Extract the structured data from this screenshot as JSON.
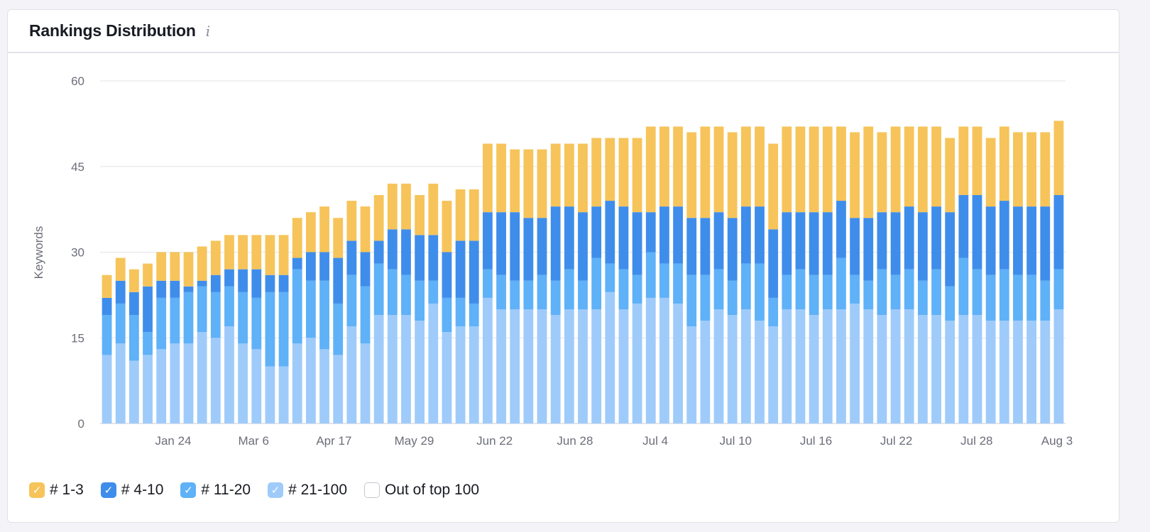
{
  "card": {
    "title": "Rankings Distribution",
    "info_icon": "info-icon"
  },
  "chart_data": {
    "type": "bar",
    "stacked": true,
    "ylabel": "Keywords",
    "xlabel": "",
    "ylim": [
      0,
      60
    ],
    "y_ticks": [
      0,
      15,
      30,
      45,
      60
    ],
    "x_tick_labels": [
      "Jan 24",
      "Mar 6",
      "Apr 17",
      "May 29",
      "Jun 22",
      "Jun 28",
      "Jul 4",
      "Jul 10",
      "Jul 16",
      "Jul 22",
      "Jul 28",
      "Aug 3"
    ],
    "grid": true,
    "legend_position": "bottom-left",
    "series": [
      {
        "name": "# 21-100",
        "color": "#9fcbfa",
        "values": [
          12,
          14,
          11,
          12,
          13,
          14,
          14,
          16,
          15,
          17,
          14,
          13,
          10,
          10,
          14,
          15,
          13,
          12,
          17,
          14,
          19,
          19,
          19,
          18,
          21,
          16,
          17,
          17,
          22,
          20,
          20,
          20,
          20,
          19,
          20,
          20,
          20,
          23,
          20,
          21,
          22,
          22,
          21,
          17,
          18,
          20,
          19,
          20,
          18,
          17,
          20,
          20,
          19,
          20,
          20,
          21,
          20,
          19,
          20,
          20,
          19,
          19,
          18,
          19,
          19,
          18,
          18,
          18,
          18,
          18,
          20
        ]
      },
      {
        "name": "# 11-20",
        "color": "#5fb1f8",
        "values": [
          7,
          7,
          8,
          4,
          9,
          8,
          9,
          8,
          8,
          7,
          9,
          9,
          13,
          13,
          13,
          10,
          12,
          9,
          9,
          10,
          9,
          8,
          7,
          7,
          4,
          6,
          5,
          4,
          5,
          6,
          5,
          5,
          6,
          6,
          7,
          5,
          9,
          5,
          7,
          5,
          8,
          6,
          7,
          9,
          8,
          7,
          6,
          8,
          10,
          5,
          6,
          7,
          7,
          6,
          9,
          5,
          5,
          8,
          6,
          7,
          6,
          8,
          6,
          10,
          8,
          8,
          9,
          8,
          8,
          7,
          7
        ]
      },
      {
        "name": "# 4-10",
        "color": "#3f8deb",
        "values": [
          3,
          4,
          4,
          8,
          3,
          3,
          1,
          1,
          3,
          3,
          4,
          5,
          3,
          3,
          2,
          5,
          5,
          8,
          6,
          6,
          4,
          7,
          8,
          8,
          8,
          8,
          10,
          11,
          10,
          11,
          12,
          11,
          10,
          13,
          11,
          12,
          9,
          11,
          11,
          11,
          7,
          10,
          10,
          10,
          10,
          10,
          11,
          10,
          10,
          12,
          11,
          10,
          11,
          11,
          10,
          10,
          11,
          10,
          11,
          11,
          12,
          11,
          13,
          11,
          13,
          12,
          12,
          12,
          12,
          13,
          13
        ]
      },
      {
        "name": "# 1-3",
        "color": "#f6c45a",
        "values": [
          4,
          4,
          4,
          4,
          5,
          5,
          6,
          6,
          6,
          6,
          6,
          6,
          7,
          7,
          7,
          7,
          8,
          7,
          7,
          8,
          8,
          8,
          8,
          7,
          9,
          9,
          9,
          9,
          12,
          12,
          11,
          12,
          12,
          11,
          11,
          12,
          12,
          11,
          12,
          13,
          15,
          14,
          14,
          15,
          16,
          15,
          15,
          14,
          14,
          15,
          15,
          15,
          15,
          15,
          13,
          15,
          16,
          14,
          15,
          14,
          15,
          14,
          13,
          12,
          12,
          12,
          13,
          13,
          13,
          13,
          13
        ]
      },
      {
        "name": "Out of top 100",
        "color": "#ffffff",
        "values": []
      }
    ]
  },
  "legend": [
    {
      "label": "# 1-3",
      "color": "#f6c45a",
      "checked": true
    },
    {
      "label": "# 4-10",
      "color": "#3f8deb",
      "checked": true
    },
    {
      "label": "# 11-20",
      "color": "#5fb1f8",
      "checked": true
    },
    {
      "label": "# 21-100",
      "color": "#9fcbfa",
      "checked": true
    },
    {
      "label": "Out of top 100",
      "color": "#ffffff",
      "checked": false
    }
  ],
  "check_mark": "✓"
}
